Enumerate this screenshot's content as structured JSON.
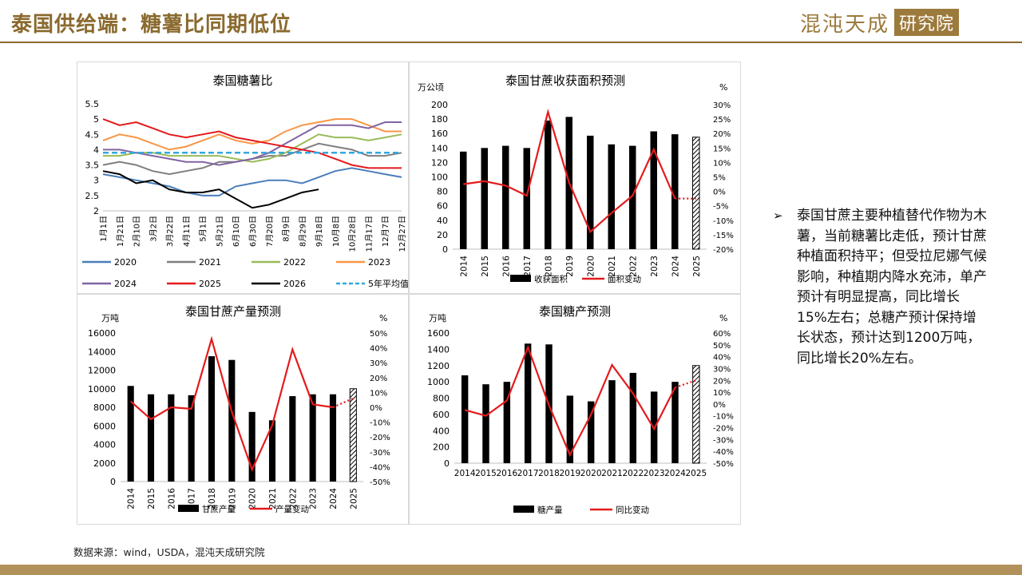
{
  "header": {
    "title": "泰国供给端：糖薯比同期低位"
  },
  "logo": {
    "name": "混沌天成",
    "box": "研究院"
  },
  "note": {
    "bullet": "➢",
    "text": "泰国甘蔗主要种植替代作物为木薯，当前糖薯比走低，预计甘蔗种植面积持平；但受拉尼娜气候影响，种植期内降水充沛，单产预计有明显提高，同比增长15%左右；总糖产预计保持增长状态，预计达到1200万吨，同比增长20%左右。"
  },
  "footer": {
    "source": "数据来源：wind，USDA，混沌天成研究院"
  },
  "chart_data": [
    {
      "type": "line",
      "title": "泰国糖薯比",
      "x": [
        "1月1日",
        "1月21日",
        "2月10日",
        "3月2日",
        "3月22日",
        "4月11日",
        "5月1日",
        "5月21日",
        "6月10日",
        "6月30日",
        "7月20日",
        "8月9日",
        "8月29日",
        "9月18日",
        "10月8日",
        "10月28日",
        "11月17日",
        "12月7日",
        "12月27日"
      ],
      "ylim": [
        2,
        5.5
      ],
      "yticks": [
        "2",
        "2.5",
        "3",
        "3.5",
        "4",
        "4.5",
        "5",
        "5.5"
      ],
      "legend": "bottom",
      "series": [
        {
          "name": "2020",
          "color": "#4a7ebb",
          "values": [
            3.2,
            3.1,
            3.0,
            2.9,
            2.8,
            2.6,
            2.5,
            2.5,
            2.8,
            2.9,
            3.0,
            3.0,
            2.9,
            3.1,
            3.3,
            3.4,
            3.3,
            3.2,
            3.1
          ]
        },
        {
          "name": "2021",
          "color": "#7f7f7f",
          "values": [
            3.5,
            3.6,
            3.5,
            3.3,
            3.2,
            3.3,
            3.4,
            3.6,
            3.6,
            3.7,
            3.8,
            3.8,
            4.0,
            4.2,
            4.1,
            4.0,
            3.8,
            3.8,
            3.9
          ]
        },
        {
          "name": "2022",
          "color": "#9bbb59",
          "values": [
            3.8,
            3.8,
            3.9,
            3.9,
            3.8,
            3.8,
            3.8,
            3.8,
            3.7,
            3.6,
            3.7,
            3.9,
            4.2,
            4.5,
            4.4,
            4.4,
            4.3,
            4.4,
            4.5
          ]
        },
        {
          "name": "2023",
          "color": "#f79646",
          "values": [
            4.3,
            4.5,
            4.4,
            4.2,
            4.0,
            4.1,
            4.3,
            4.5,
            4.3,
            4.2,
            4.3,
            4.6,
            4.8,
            4.9,
            5.0,
            5.0,
            4.8,
            4.6,
            4.6
          ]
        },
        {
          "name": "2024",
          "color": "#8064a2",
          "values": [
            4.0,
            4.0,
            3.9,
            3.8,
            3.7,
            3.6,
            3.6,
            3.5,
            3.6,
            3.7,
            3.9,
            4.2,
            4.5,
            4.8,
            4.8,
            4.8,
            4.7,
            4.9,
            4.9
          ]
        },
        {
          "name": "2025",
          "color": "#e41a1c",
          "values": [
            5.0,
            4.8,
            4.9,
            4.7,
            4.5,
            4.4,
            4.5,
            4.6,
            4.4,
            4.3,
            4.2,
            4.1,
            4.0,
            3.9,
            3.7,
            3.5,
            3.4,
            3.4,
            3.4
          ]
        },
        {
          "name": "2026",
          "color": "#000000",
          "values": [
            3.3,
            3.2,
            2.9,
            3.0,
            2.7,
            2.6,
            2.6,
            2.7,
            2.4,
            2.1,
            2.2,
            2.4,
            2.6,
            2.7,
            null,
            null,
            null,
            null,
            null
          ]
        },
        {
          "name": "5年平均值",
          "color": "#33a8e0",
          "dash": true,
          "values": [
            3.9,
            3.9,
            3.9,
            3.9,
            3.9,
            3.9,
            3.9,
            3.9,
            3.9,
            3.9,
            3.9,
            3.9,
            3.9,
            3.9,
            3.9,
            3.9,
            3.9,
            3.9,
            3.9
          ]
        }
      ]
    },
    {
      "type": "bar",
      "title": "泰国甘蔗收获面积预测",
      "ylabel": "万公顷",
      "y2label": "%",
      "categories": [
        "2014",
        "2015",
        "2016",
        "2017",
        "2018",
        "2019",
        "2020",
        "2021",
        "2022",
        "2023",
        "2024",
        "2025"
      ],
      "ylim": [
        0,
        200
      ],
      "yticks": [
        "0",
        "20",
        "40",
        "60",
        "80",
        "100",
        "120",
        "140",
        "160",
        "180",
        "200"
      ],
      "y2lim": [
        -20,
        30
      ],
      "y2ticks": [
        "-20%",
        "-15%",
        "-10%",
        "-5%",
        "0%",
        "5%",
        "10%",
        "15%",
        "20%",
        "25%",
        "30%"
      ],
      "series": [
        {
          "name": "收获面积",
          "kind": "bar",
          "values": [
            135,
            140,
            143,
            140,
            178,
            183,
            157,
            145,
            143,
            163,
            159,
            155
          ],
          "forecast_index": 11
        },
        {
          "name": "面积变动",
          "kind": "line",
          "axis": "y2",
          "values": [
            2.5,
            3.5,
            2.0,
            -1.5,
            27.5,
            3.0,
            -14.0,
            -7.5,
            -1.5,
            14.5,
            -2.5,
            -2.5
          ],
          "forecast_index": 11
        }
      ]
    },
    {
      "type": "bar",
      "title": "泰国甘蔗产量预测",
      "ylabel": "万吨",
      "y2label": "%",
      "categories": [
        "2014",
        "2015",
        "2016",
        "2017",
        "2018",
        "2019",
        "2020",
        "2021",
        "2022",
        "2023",
        "2024",
        "2025"
      ],
      "ylim": [
        0,
        16000
      ],
      "yticks": [
        "0",
        "2000",
        "4000",
        "6000",
        "8000",
        "10000",
        "12000",
        "14000",
        "16000"
      ],
      "y2lim": [
        -50,
        50
      ],
      "y2ticks": [
        "-50%",
        "-40%",
        "-30%",
        "-20%",
        "-10%",
        "0%",
        "10%",
        "20%",
        "30%",
        "40%",
        "50%"
      ],
      "series": [
        {
          "name": "甘蔗产量",
          "kind": "bar",
          "values": [
            10300,
            9400,
            9400,
            9300,
            13500,
            13100,
            7500,
            6600,
            9200,
            9400,
            9400,
            10000
          ],
          "forecast_index": 11
        },
        {
          "name": "产量变动",
          "kind": "line",
          "axis": "y2",
          "values": [
            4,
            -8,
            0,
            -1,
            46,
            -3,
            -42,
            -12,
            39,
            2,
            0,
            6
          ],
          "forecast_index": 11
        }
      ]
    },
    {
      "type": "bar",
      "title": "泰国糖产预测",
      "ylabel": "万吨",
      "y2label": "%",
      "categories": [
        "2014",
        "2015",
        "2016",
        "2017",
        "2018",
        "2019",
        "2020",
        "2021",
        "2022",
        "2023",
        "2024",
        "2025"
      ],
      "ylim": [
        0,
        1600
      ],
      "yticks": [
        "0",
        "200",
        "400",
        "600",
        "800",
        "1000",
        "1200",
        "1400",
        "1600"
      ],
      "y2lim": [
        -50,
        60
      ],
      "y2ticks": [
        "-50%",
        "-40%",
        "-30%",
        "-20%",
        "-10%",
        "0%",
        "10%",
        "20%",
        "30%",
        "40%",
        "50%",
        "60%"
      ],
      "series": [
        {
          "name": "糖产量",
          "kind": "bar",
          "values": [
            1080,
            970,
            1000,
            1470,
            1460,
            830,
            760,
            1020,
            1110,
            880,
            1000,
            1200
          ],
          "forecast_index": 11
        },
        {
          "name": "同比变动",
          "kind": "line",
          "axis": "y2",
          "values": [
            -5,
            -10,
            3,
            48,
            -1,
            -43,
            -9,
            33,
            9,
            -21,
            14,
            20
          ],
          "forecast_index": 11
        }
      ]
    }
  ]
}
